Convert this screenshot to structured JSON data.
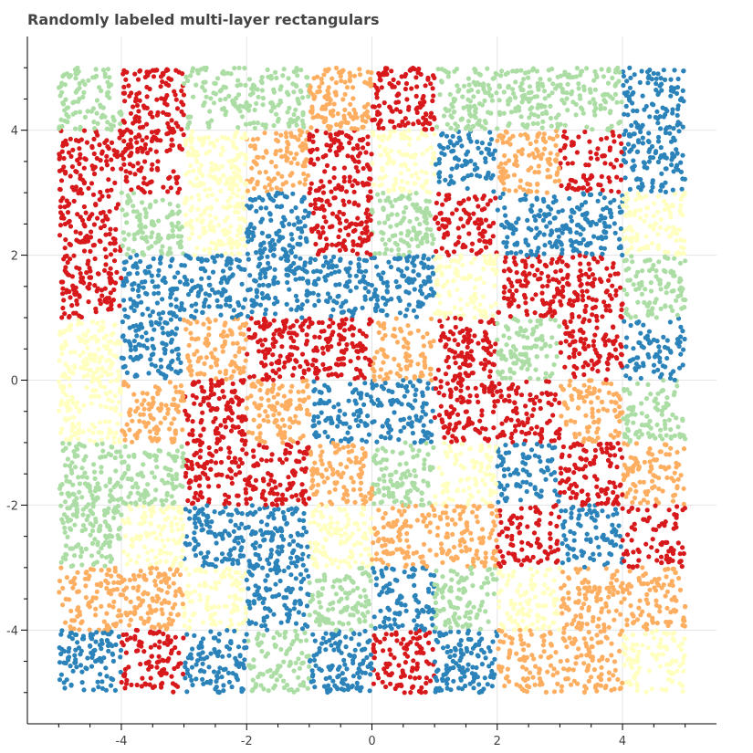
{
  "chart_data": {
    "type": "scatter",
    "title": "Randomly labeled multi-layer rectangulars",
    "xlabel": "",
    "ylabel": "",
    "xlim": [
      -5.5,
      5.5
    ],
    "ylim": [
      -5.5,
      5.5
    ],
    "xticks": [
      -4,
      -2,
      0,
      2,
      4
    ],
    "yticks": [
      4,
      2,
      0,
      -2,
      -4
    ],
    "grid": true,
    "legend": "none",
    "palette": {
      "blue": "#2b83ba",
      "red": "#d7191c",
      "light_green": "#abdda4",
      "light_yellow": "#ffffbf",
      "orange": "#fdae61"
    },
    "point_count": 10000,
    "cell_size": 1,
    "cell_colors_top_to_bottom": [
      [
        "light_green",
        "red",
        "light_green",
        "light_green",
        "orange",
        "red",
        "light_green",
        "light_green",
        "light_green",
        "blue"
      ],
      [
        "red",
        "red",
        "light_yellow",
        "orange",
        "red",
        "light_yellow",
        "blue",
        "orange",
        "red",
        "blue"
      ],
      [
        "red",
        "light_green",
        "light_yellow",
        "blue",
        "red",
        "light_green",
        "red",
        "blue",
        "blue",
        "light_yellow"
      ],
      [
        "red",
        "blue",
        "blue",
        "blue",
        "blue",
        "blue",
        "light_yellow",
        "red",
        "red",
        "light_green"
      ],
      [
        "light_yellow",
        "blue",
        "orange",
        "red",
        "red",
        "orange",
        "red",
        "light_green",
        "red",
        "blue"
      ],
      [
        "light_yellow",
        "orange",
        "red",
        "orange",
        "blue",
        "blue",
        "red",
        "red",
        "orange",
        "light_green"
      ],
      [
        "light_green",
        "light_green",
        "red",
        "red",
        "orange",
        "light_green",
        "light_yellow",
        "blue",
        "red",
        "orange"
      ],
      [
        "light_green",
        "light_yellow",
        "blue",
        "blue",
        "light_yellow",
        "orange",
        "orange",
        "red",
        "blue",
        "red"
      ],
      [
        "orange",
        "orange",
        "light_yellow",
        "blue",
        "light_green",
        "blue",
        "light_green",
        "light_yellow",
        "orange",
        "orange"
      ],
      [
        "blue",
        "red",
        "blue",
        "light_green",
        "blue",
        "red",
        "blue",
        "orange",
        "orange",
        "light_yellow"
      ]
    ]
  }
}
